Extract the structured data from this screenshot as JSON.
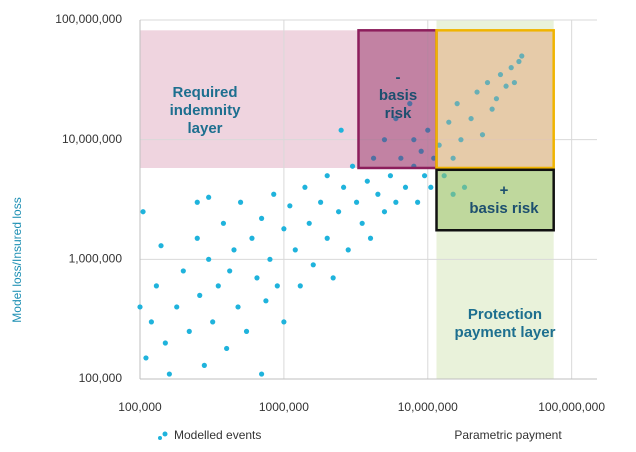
{
  "chart_data": {
    "type": "scatter",
    "y_label": "Model loss/Insured loss",
    "x_label": "Parametric payment",
    "xlog": true,
    "ylog": true,
    "grid": true,
    "xlim": [
      100000,
      150000000
    ],
    "ylim": [
      100000,
      100000000
    ],
    "xticks": [
      {
        "value": 100000,
        "label": "100,000"
      },
      {
        "value": 1000000,
        "label": "1000,000"
      },
      {
        "value": 10000000,
        "label": "10,000,000"
      },
      {
        "value": 100000000,
        "label": "100,000,000"
      }
    ],
    "yticks": [
      {
        "value": 100000,
        "label": "100,000"
      },
      {
        "value": 1000000,
        "label": "1,000,000"
      },
      {
        "value": 10000000,
        "label": "10,000,000"
      },
      {
        "value": 100000000,
        "label": "100,000,000"
      }
    ],
    "x": [
      110000,
      120000,
      130000,
      140000,
      150000,
      160000,
      180000,
      200000,
      220000,
      250000,
      260000,
      280000,
      300000,
      320000,
      350000,
      380000,
      400000,
      420000,
      450000,
      480000,
      500000,
      550000,
      600000,
      650000,
      700000,
      700000,
      750000,
      800000,
      850000,
      900000,
      1000000,
      1000000,
      1100000,
      1200000,
      1300000,
      1400000,
      1500000,
      1600000,
      1800000,
      2000000,
      2000000,
      2200000,
      2400000,
      2600000,
      2800000,
      3000000,
      3200000,
      3500000,
      3800000,
      4000000,
      4200000,
      4500000,
      5000000,
      5000000,
      5500000,
      6000000,
      6000000,
      6500000,
      7000000,
      7500000,
      8000000,
      8000000,
      8500000,
      9000000,
      9500000,
      10000000,
      10500000,
      11000000,
      12000000,
      13000000,
      14000000,
      15000000,
      16000000,
      17000000,
      18000000,
      20000000,
      22000000,
      24000000,
      26000000,
      28000000,
      30000000,
      32000000,
      35000000,
      38000000,
      40000000,
      43000000,
      45000000,
      250000,
      300000,
      100000,
      105000,
      2500000,
      15000000
    ],
    "series": [
      {
        "name": "Modelled events",
        "color": "#1fb3dc",
        "values": [
          150000,
          300000,
          600000,
          1300000,
          200000,
          110000,
          400000,
          800000,
          250000,
          1500000,
          500000,
          130000,
          1000000,
          300000,
          600000,
          2000000,
          180000,
          800000,
          1200000,
          400000,
          3000000,
          250000,
          1500000,
          700000,
          110000,
          2200000,
          450000,
          1000000,
          3500000,
          600000,
          1800000,
          300000,
          2800000,
          1200000,
          600000,
          4000000,
          2000000,
          900000,
          3000000,
          1500000,
          5000000,
          700000,
          2500000,
          4000000,
          1200000,
          6000000,
          3000000,
          2000000,
          4500000,
          1500000,
          7000000,
          3500000,
          10000000,
          2500000,
          5000000,
          15000000,
          3000000,
          7000000,
          4000000,
          20000000,
          6000000,
          10000000,
          3000000,
          8000000,
          5000000,
          12000000,
          4000000,
          7000000,
          9000000,
          5000000,
          14000000,
          7000000,
          20000000,
          10000000,
          4000000,
          15000000,
          25000000,
          11000000,
          30000000,
          18000000,
          22000000,
          35000000,
          28000000,
          40000000,
          30000000,
          45000000,
          50000000,
          3000000,
          3300000,
          400000,
          2500000,
          12000000,
          3500000
        ]
      }
    ],
    "regions": [
      {
        "label": [
          "Required",
          "indemnity",
          "layer"
        ],
        "xlim": [
          100000,
          75000000
        ],
        "ylim": [
          5800000,
          82000000
        ],
        "fill": "#dca0b8",
        "opacity": 0.45,
        "text_color": "#1d6f8f"
      },
      {
        "label": [
          "Protection",
          "payment layer"
        ],
        "xlim": [
          11500000,
          75000000
        ],
        "ylim": [
          100000,
          100000000
        ],
        "fill": "#d4e5b5",
        "opacity": 0.5,
        "text_color": "#1d6f8f"
      },
      {
        "label": [
          "-",
          "basis",
          "risk"
        ],
        "xlim": [
          3300000,
          11500000
        ],
        "ylim": [
          5800000,
          82000000
        ],
        "fill": "#8c1e5c",
        "stroke": "#8c1e5c",
        "opacity": 0.45,
        "text_color": "#1d4f6f"
      },
      {
        "label": [],
        "xlim": [
          11500000,
          75000000
        ],
        "ylim": [
          5800000,
          82000000
        ],
        "fill": "#f2a96e",
        "stroke": "#f0b400",
        "opacity": 0.35,
        "text_color": "#1d4f6f"
      },
      {
        "label": [
          "+",
          "basis risk"
        ],
        "xlim": [
          11500000,
          75000000
        ],
        "ylim": [
          1750000,
          5600000
        ],
        "fill": "#9cc26c",
        "stroke": "#111111",
        "opacity": 0.55,
        "text_color": "#1d4f6f"
      }
    ]
  }
}
